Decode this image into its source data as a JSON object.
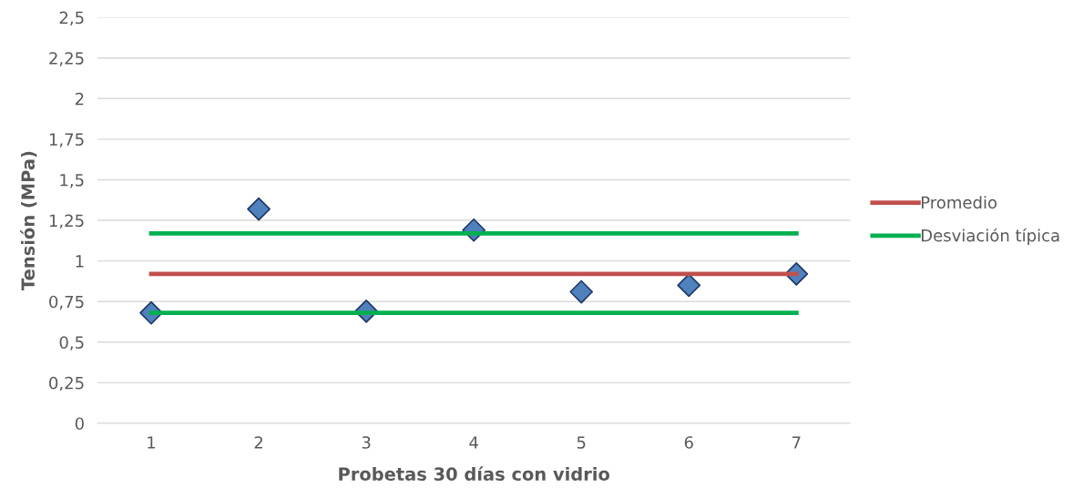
{
  "chart_data": {
    "type": "line",
    "xlabel": "Probetas 30 días con vidrio",
    "ylabel": "Tensión (MPa)",
    "categories": [
      "1",
      "2",
      "3",
      "4",
      "5",
      "6",
      "7"
    ],
    "series": [
      {
        "type": "scatter",
        "color": "#4f81bd",
        "marker": "diamond",
        "values": [
          0.68,
          1.32,
          0.69,
          1.19,
          0.81,
          0.85,
          0.92
        ]
      },
      {
        "name": "Promedio",
        "color": "#c0504d",
        "values": [
          0.92,
          0.92,
          0.92,
          0.92,
          0.92,
          0.92,
          0.92
        ]
      },
      {
        "name": "Desviación típica",
        "color": "#00b050",
        "values": [
          1.17,
          1.17,
          1.17,
          1.17,
          1.17,
          1.17,
          1.17
        ]
      },
      {
        "color": "#00b050",
        "values": [
          0.68,
          0.68,
          0.68,
          0.68,
          0.68,
          0.68,
          0.68
        ]
      }
    ],
    "ylim": [
      0,
      2.5
    ],
    "yticks": [
      0,
      {
        "value": 0.25,
        "label": "0,25"
      },
      {
        "value": 0.5,
        "label": "0,5"
      },
      {
        "value": 0.75,
        "label": "0,75"
      },
      1,
      {
        "value": 1.25,
        "label": "1,25"
      },
      {
        "value": 1.5,
        "label": "1,5"
      },
      {
        "value": 1.75,
        "label": "1,75"
      },
      2,
      {
        "value": 2.25,
        "label": "2,25"
      },
      {
        "value": 2.5,
        "label": "2,5"
      }
    ],
    "grid": "y",
    "legend": "right",
    "marker": "none",
    "line_style": "solid"
  }
}
